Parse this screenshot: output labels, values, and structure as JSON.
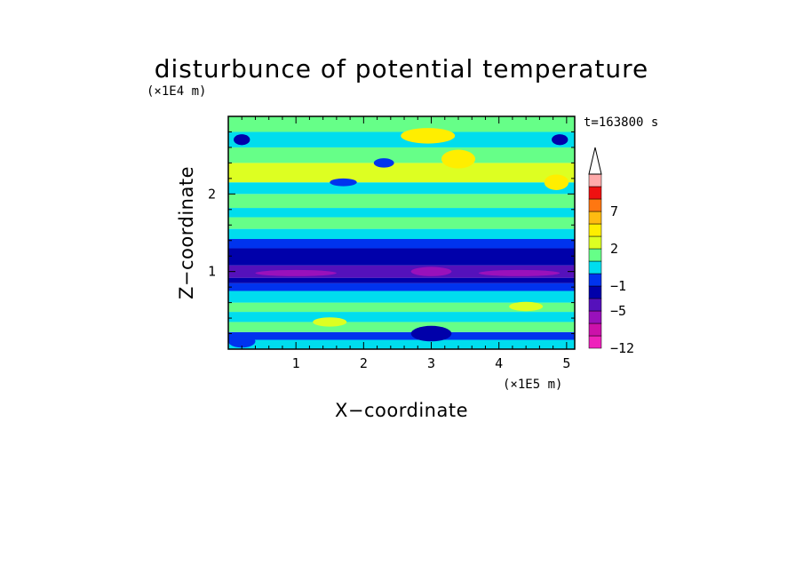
{
  "chart_data": {
    "type": "heatmap",
    "title": "disturbunce of potential temperature",
    "xlabel": "X−coordinate",
    "ylabel": "Z−coordinate",
    "x_unit": "(×1E5 m)",
    "y_unit": "(×1E4 m)",
    "time_label": "t=163800 s",
    "xlim": [
      0,
      5.12
    ],
    "ylim": [
      0,
      3.0
    ],
    "x_ticks": [
      1,
      2,
      3,
      4,
      5
    ],
    "x_tick_labels": [
      "1",
      "2",
      "3",
      "4",
      "5"
    ],
    "y_ticks": [
      1,
      2
    ],
    "y_tick_labels": [
      "1",
      "2"
    ],
    "colorbar": {
      "levels": [
        -12,
        -9,
        -7,
        -5,
        -3,
        -1,
        0,
        1,
        2,
        3,
        5,
        7,
        9,
        12
      ],
      "tick_labels": [
        "−12",
        "−5",
        "−1",
        "2",
        "7"
      ],
      "tick_values": [
        -12,
        -5,
        -1,
        2,
        7
      ],
      "colors": [
        "#ee22bb",
        "#cc11aa",
        "#9911bb",
        "#5511bb",
        "#0000aa",
        "#0033ee",
        "#00ddee",
        "#66ff88",
        "#ddff22",
        "#ffee00",
        "#ffbb11",
        "#ff7711",
        "#ee1111",
        "#ffaaaa"
      ],
      "extend": "max"
    },
    "bands": [
      {
        "z": [
          0.0,
          0.12
        ],
        "value": 0.5
      },
      {
        "z": [
          0.12,
          0.22
        ],
        "value": -0.5
      },
      {
        "z": [
          0.22,
          0.35
        ],
        "value": 1.5
      },
      {
        "z": [
          0.35,
          0.48
        ],
        "value": 0.5
      },
      {
        "z": [
          0.48,
          0.6
        ],
        "value": 1.5
      },
      {
        "z": [
          0.6,
          0.75
        ],
        "value": 0.5
      },
      {
        "z": [
          0.75,
          0.85
        ],
        "value": -0.5
      },
      {
        "z": [
          0.85,
          0.92
        ],
        "value": -2
      },
      {
        "z": [
          0.92,
          1.08
        ],
        "value": -4
      },
      {
        "z": [
          1.08,
          1.3
        ],
        "value": -2
      },
      {
        "z": [
          1.3,
          1.42
        ],
        "value": -0.5
      },
      {
        "z": [
          1.42,
          1.55
        ],
        "value": 0.5
      },
      {
        "z": [
          1.55,
          1.7
        ],
        "value": 1.5
      },
      {
        "z": [
          1.7,
          1.82
        ],
        "value": 0.5
      },
      {
        "z": [
          1.82,
          2.0
        ],
        "value": 1.5
      },
      {
        "z": [
          2.0,
          2.15
        ],
        "value": 0.5
      },
      {
        "z": [
          2.15,
          2.4
        ],
        "value": 2.5
      },
      {
        "z": [
          2.4,
          2.6
        ],
        "value": 1.5
      },
      {
        "z": [
          2.6,
          2.8
        ],
        "value": 0.5
      },
      {
        "z": [
          2.8,
          3.0
        ],
        "value": 1.5
      }
    ],
    "blobs": [
      {
        "x": 0.2,
        "z": 2.7,
        "rx": 0.12,
        "rz": 0.07,
        "value": -2
      },
      {
        "x": 4.9,
        "z": 2.7,
        "rx": 0.12,
        "rz": 0.07,
        "value": -2
      },
      {
        "x": 2.95,
        "z": 2.75,
        "rx": 0.4,
        "rz": 0.1,
        "value": 4
      },
      {
        "x": 3.4,
        "z": 2.45,
        "rx": 0.25,
        "rz": 0.12,
        "value": 4
      },
      {
        "x": 4.85,
        "z": 2.15,
        "rx": 0.18,
        "rz": 0.1,
        "value": 4
      },
      {
        "x": 2.3,
        "z": 2.4,
        "rx": 0.15,
        "rz": 0.06,
        "value": -0.5
      },
      {
        "x": 1.7,
        "z": 2.15,
        "rx": 0.2,
        "rz": 0.05,
        "value": -0.5
      },
      {
        "x": 3.0,
        "z": 1.0,
        "rx": 0.3,
        "rz": 0.06,
        "value": -6
      },
      {
        "x": 1.0,
        "z": 0.98,
        "rx": 0.6,
        "rz": 0.04,
        "value": -6
      },
      {
        "x": 4.3,
        "z": 0.98,
        "rx": 0.6,
        "rz": 0.04,
        "value": -6
      },
      {
        "x": 3.0,
        "z": 0.2,
        "rx": 0.3,
        "rz": 0.1,
        "value": -2
      },
      {
        "x": 0.2,
        "z": 0.1,
        "rx": 0.2,
        "rz": 0.08,
        "value": -0.5
      },
      {
        "x": 1.5,
        "z": 0.35,
        "rx": 0.25,
        "rz": 0.06,
        "value": 2.5
      },
      {
        "x": 4.4,
        "z": 0.55,
        "rx": 0.25,
        "rz": 0.06,
        "value": 2.5
      }
    ]
  }
}
